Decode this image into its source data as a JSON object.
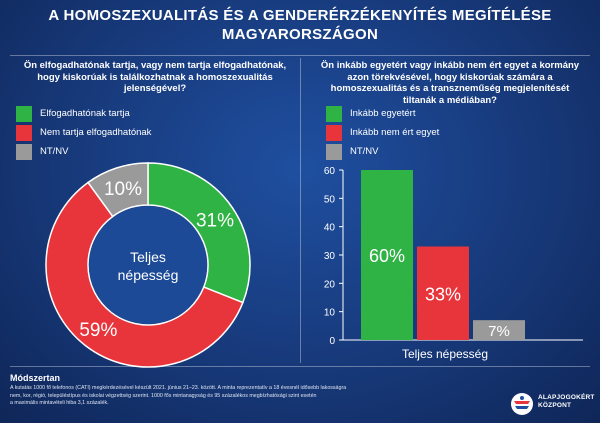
{
  "title_line1": "A HOMOSZEXUALITÁS ÉS A GENDERÉRZÉKENYÍTÉS MEGÍTÉLÉSE",
  "title_line2": "MAGYARORSZÁGON",
  "left": {
    "question_lines": [
      "Ön elfogadhatónak tartja, vagy nem tartja elfogadhatónak,",
      "hogy kiskorúak is találkozhatnak a homoszexualitás",
      "jelenségével?"
    ],
    "legend": [
      {
        "label": "Elfogadhatónak tartja",
        "color": "#2fb344"
      },
      {
        "label": "Nem tartja elfogadhatónak",
        "color": "#e8343b"
      },
      {
        "label": "NT/NV",
        "color": "#9a9a9a"
      }
    ]
  },
  "right": {
    "question_lines": [
      "Ön inkább egyetért vagy inkább nem ért egyet a kormány",
      "azon törekvésével, hogy kiskorúak számára a",
      "homoszexualitás és a transzneműség megjelenítését",
      "tiltanák a médiában?"
    ],
    "legend": [
      {
        "label": "Inkább egyetért",
        "color": "#2fb344"
      },
      {
        "label": "Inkább nem ért egyet",
        "color": "#e8343b"
      },
      {
        "label": "NT/NV",
        "color": "#9a9a9a"
      }
    ]
  },
  "chart_data": [
    {
      "type": "pie",
      "center_label_lines": [
        "Teljes",
        "népesség"
      ],
      "slices": [
        {
          "label": "Elfogadhatónak tartja",
          "value": 31,
          "display": "31%",
          "color": "#2fb344"
        },
        {
          "label": "Nem tartja elfogadhatónak",
          "value": 59,
          "display": "59%",
          "color": "#e8343b"
        },
        {
          "label": "NT/NV",
          "value": 10,
          "display": "10%",
          "color": "#9a9a9a"
        }
      ]
    },
    {
      "type": "bar",
      "xlabel": "Teljes népesség",
      "ylim": [
        0,
        60
      ],
      "yticks": [
        0,
        10,
        20,
        30,
        40,
        50,
        60
      ],
      "series": [
        {
          "name": "Inkább egyetért",
          "value": 60,
          "display": "60%",
          "color": "#2fb344"
        },
        {
          "name": "Inkább nem ért egyet",
          "value": 33,
          "display": "33%",
          "color": "#e8343b"
        },
        {
          "name": "NT/NV",
          "value": 7,
          "display": "7%",
          "color": "#9a9a9a"
        }
      ]
    }
  ],
  "methodology": {
    "title": "Módszertan",
    "lines": [
      "A kutatás 1000 fő telefonos (CATI) megkérdezésével készült 2021. június 21–23. között. A minta reprezentatív a 18 évesnél idősebb lakosságra",
      "nem, kor, régió, településtípus és iskolai végzettség szerint. 1000 fős mintanagyság és 95 százalékos megbízhatósági szint esetén",
      "a maximális mintavételi hiba 3,1 százalék."
    ]
  },
  "logo": {
    "line1": "ALAPJOGOKÉRT",
    "line2": "KÖZPONT"
  }
}
